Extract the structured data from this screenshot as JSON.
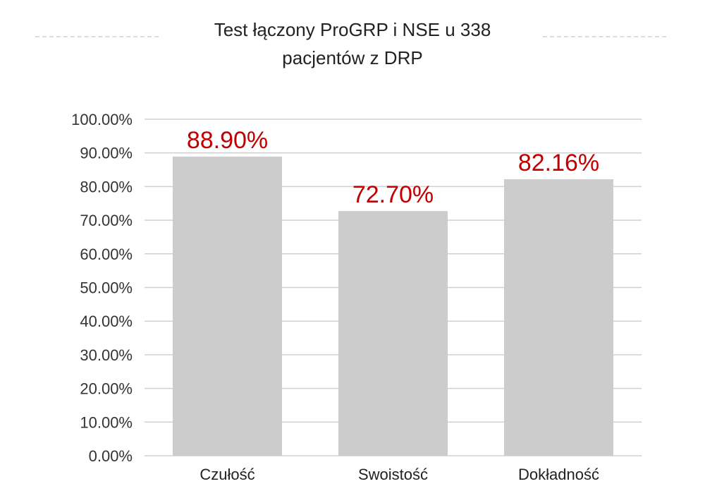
{
  "chart_data": {
    "type": "bar",
    "title_lines": [
      "Test łączony ProGRP i NSE u 338",
      "pacjentów z DRP"
    ],
    "categories": [
      "Czułość",
      "Swoistość",
      "Dokładność"
    ],
    "values": [
      88.9,
      72.7,
      82.16
    ],
    "data_labels": [
      "88.90%",
      "72.70%",
      "82.16%"
    ],
    "xlabel": "",
    "ylabel": "",
    "ylim": [
      0,
      100
    ],
    "yticks": [
      "0.00%",
      "10.00%",
      "20.00%",
      "30.00%",
      "40.00%",
      "50.00%",
      "60.00%",
      "70.00%",
      "80.00%",
      "90.00%",
      "100.00%"
    ],
    "grid": true,
    "legend": "none",
    "colors": {
      "bar": "#cccccc",
      "label": "#c00000",
      "grid": "#d0d0d0"
    }
  }
}
